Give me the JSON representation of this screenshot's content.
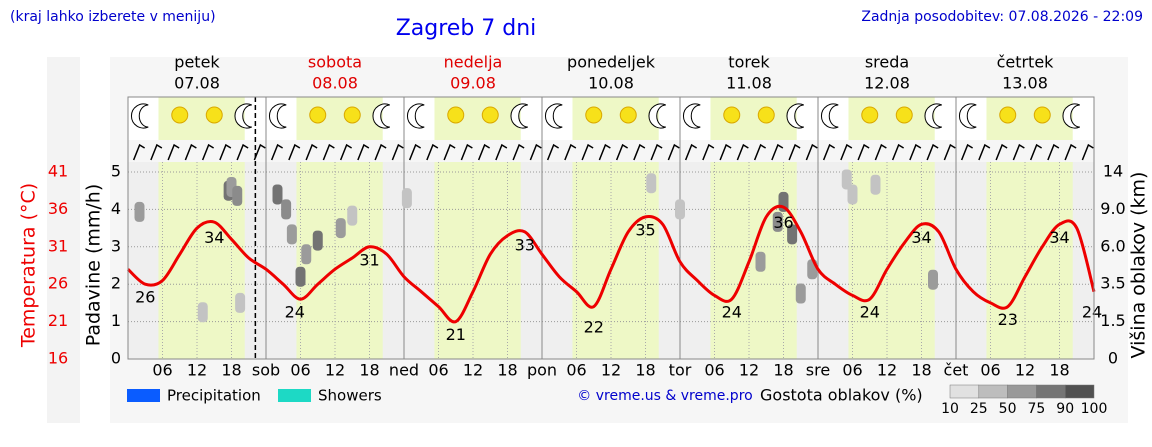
{
  "header": {
    "hint": "(kraj lahko izberete v meniju)",
    "title": "Zagreb 7 dni",
    "updated": "Zadnja posodobitev: 07.08.2026 - 22:09"
  },
  "chart_data": {
    "type": "line",
    "days": [
      {
        "name": "petek",
        "date": "07.08",
        "color": "#000000"
      },
      {
        "name": "sobota",
        "date": "08.08",
        "color": "#e00000"
      },
      {
        "name": "nedelja",
        "date": "09.08",
        "color": "#e00000"
      },
      {
        "name": "ponedeljek",
        "date": "10.08",
        "color": "#000000"
      },
      {
        "name": "torek",
        "date": "11.08",
        "color": "#000000"
      },
      {
        "name": "sreda",
        "date": "12.08",
        "color": "#000000"
      },
      {
        "name": "četrtek",
        "date": "13.08",
        "color": "#000000"
      }
    ],
    "xlim": [
      0,
      168
    ],
    "xticks": [
      {
        "value": 6,
        "label": "06"
      },
      12,
      18,
      {
        "value": 24,
        "label": "sob"
      },
      {
        "value": 30,
        "label": "06"
      },
      {
        "value": 36,
        "label": "12"
      },
      {
        "value": 42,
        "label": "18"
      },
      {
        "value": 48,
        "label": "ned"
      },
      {
        "value": 54,
        "label": "06"
      },
      {
        "value": 60,
        "label": "12"
      },
      {
        "value": 66,
        "label": "18"
      },
      {
        "value": 72,
        "label": "pon"
      },
      {
        "value": 78,
        "label": "06"
      },
      {
        "value": 84,
        "label": "12"
      },
      {
        "value": 90,
        "label": "18"
      },
      {
        "value": 96,
        "label": "tor"
      },
      {
        "value": 102,
        "label": "06"
      },
      {
        "value": 108,
        "label": "12"
      },
      {
        "value": 114,
        "label": "18"
      },
      {
        "value": 120,
        "label": "sre"
      },
      {
        "value": 126,
        "label": "06"
      },
      {
        "value": 132,
        "label": "12"
      },
      {
        "value": 138,
        "label": "18"
      },
      {
        "value": 144,
        "label": "čet"
      },
      {
        "value": 150,
        "label": "06"
      },
      {
        "value": 156,
        "label": "12"
      },
      {
        "value": 162,
        "label": "18"
      }
    ],
    "ylabel": "Padavine (mm/h)",
    "ylim": [
      0,
      5
    ],
    "yticks": [
      0,
      1,
      2,
      3,
      4,
      5
    ],
    "temp_label": "Temperatura (°C)",
    "temp_color": "#ee0000",
    "temp_ylim": [
      16,
      41
    ],
    "temp_ticks": [
      16,
      21,
      26,
      31,
      36,
      41
    ],
    "cloud_label": "Višina oblakov (km)",
    "cloud_ticks": [
      0,
      1.5,
      3.5,
      {
        "value": 6,
        "label": "6.0"
      },
      {
        "value": 9,
        "label": "9.0"
      },
      14
    ],
    "daylight": [
      [
        5.3,
        20.3
      ],
      [
        29.3,
        44.3
      ],
      [
        53.3,
        68.3
      ],
      [
        77.3,
        92.3
      ],
      [
        101.3,
        116.3
      ],
      [
        125.3,
        140.3
      ],
      [
        149.3,
        164.3
      ]
    ],
    "now_hour": 22.15,
    "temperature": {
      "color": "#ee0000",
      "x": [
        0,
        3,
        6,
        9,
        12,
        15,
        18,
        21,
        24,
        27,
        30,
        33,
        36,
        39,
        42,
        45,
        48,
        51,
        54,
        57,
        60,
        63,
        66,
        69,
        72,
        75,
        78,
        81,
        84,
        87,
        90,
        93,
        96,
        99,
        102,
        105,
        108,
        111,
        114,
        117,
        120,
        123,
        126,
        129,
        132,
        135,
        138,
        141,
        144,
        147,
        150,
        153,
        156,
        159,
        162,
        165,
        168
      ],
      "values": [
        28,
        26,
        26.5,
        30,
        33.5,
        34.3,
        32,
        29.5,
        28,
        26,
        24,
        26,
        28,
        29.5,
        31,
        30,
        27,
        25,
        23,
        21,
        25,
        30,
        32.5,
        33,
        30,
        27,
        25,
        23,
        28,
        33,
        35,
        34,
        29,
        26.5,
        24.5,
        24,
        29,
        35,
        36.3,
        33,
        28,
        26,
        24.5,
        24,
        28,
        31.5,
        34,
        33,
        28,
        25,
        23.5,
        23,
        27,
        31,
        34,
        33.5,
        25
      ]
    },
    "temp_labels": {
      "x": [
        3,
        15,
        29,
        42,
        57,
        69,
        81,
        90,
        105,
        114,
        129,
        138,
        153,
        162,
        168
      ],
      "values": [
        26,
        34,
        24,
        31,
        21,
        33,
        22,
        35,
        24,
        36,
        24,
        34,
        23,
        34,
        24
      ]
    },
    "clouds": {
      "x": [
        2,
        13,
        17.5,
        18,
        19,
        19.5,
        26,
        27.5,
        28.5,
        30,
        31,
        33,
        37,
        39,
        48.5,
        91,
        96,
        110,
        113,
        114,
        115.5,
        117,
        119,
        125,
        126,
        130,
        140
      ],
      "height": [
        8.8,
        2,
        11.5,
        12,
        10.8,
        2.5,
        11,
        9,
        7,
        4,
        5.5,
        6.5,
        7.5,
        8.5,
        10.5,
        12.5,
        9,
        5,
        8,
        10,
        7,
        3,
        4.5,
        13,
        11,
        12.3,
        3.8
      ],
      "density": [
        50,
        25,
        75,
        50,
        60,
        25,
        75,
        60,
        50,
        75,
        50,
        75,
        50,
        25,
        25,
        25,
        25,
        50,
        60,
        75,
        75,
        50,
        50,
        25,
        25,
        25,
        50
      ]
    },
    "legend": [
      {
        "name": "Precipitation",
        "color": "#0a5cff"
      },
      {
        "name": "Showers",
        "color": "#1dd9c5"
      }
    ],
    "credit": "© vreme.us & vreme.pro",
    "density_title": "Gostota oblakov (%)",
    "density_ticks": [
      10,
      25,
      50,
      75,
      90,
      100
    ]
  }
}
